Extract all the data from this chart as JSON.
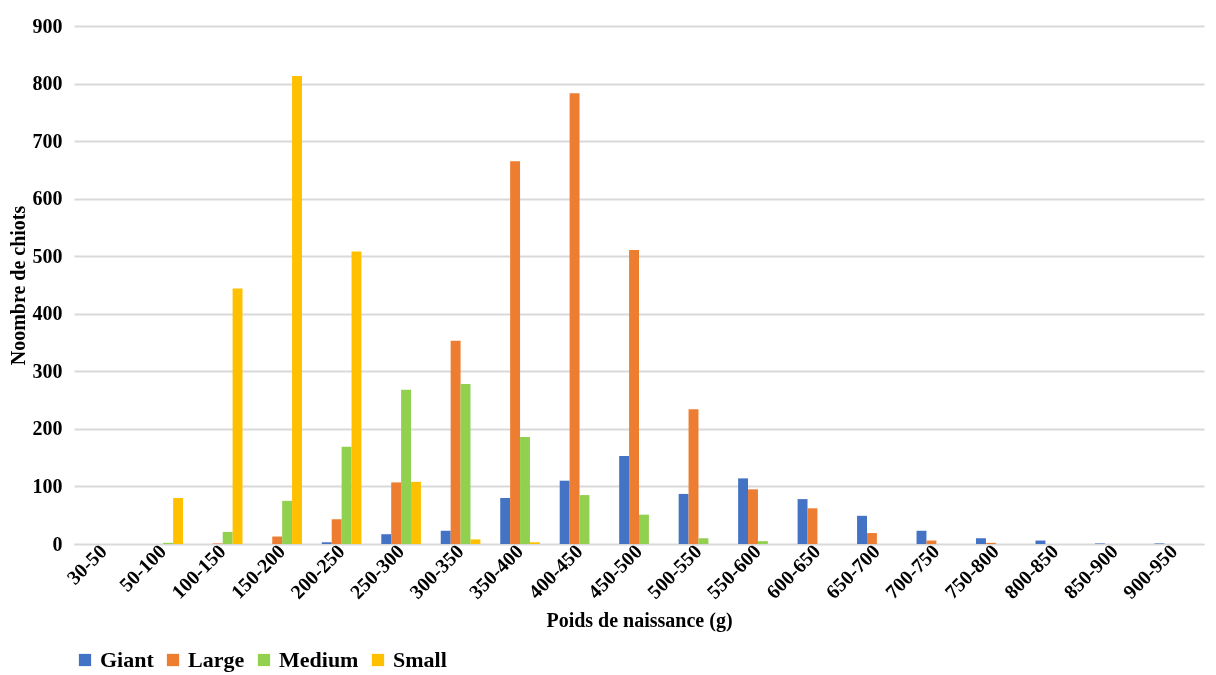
{
  "chart_data": {
    "type": "bar",
    "xlabel": "Poids de naissance (g)",
    "ylabel": "Noombre de chiots",
    "categories": [
      "30-50",
      "50-100",
      "100-150",
      "150-200",
      "200-250",
      "250-300",
      "300-350",
      "350-400",
      "400-450",
      "450-500",
      "500-550",
      "550-600",
      "600-650",
      "650-700",
      "700-750",
      "750-800",
      "800-850",
      "850-900",
      "900-950"
    ],
    "series": [
      {
        "name": "Giant",
        "color": "#4472c4",
        "values": [
          0,
          0,
          0,
          0,
          3,
          17,
          23,
          80,
          110,
          153,
          87,
          114,
          78,
          49,
          23,
          10,
          6,
          1,
          1
        ]
      },
      {
        "name": "Large",
        "color": "#ed7d31",
        "values": [
          0,
          0,
          1,
          13,
          43,
          107,
          353,
          665,
          783,
          511,
          234,
          95,
          62,
          19,
          6,
          2,
          0,
          0,
          0
        ]
      },
      {
        "name": "Medium",
        "color": "#92d050",
        "values": [
          0,
          2,
          21,
          75,
          169,
          268,
          278,
          186,
          85,
          51,
          10,
          5,
          0,
          0,
          0,
          0,
          0,
          0,
          0
        ]
      },
      {
        "name": "Small",
        "color": "#ffc000",
        "values": [
          0,
          80,
          444,
          813,
          508,
          108,
          8,
          3,
          0,
          0,
          0,
          0,
          0,
          0,
          0,
          0,
          0,
          0,
          0
        ]
      }
    ],
    "ylim": [
      0,
      900
    ],
    "yticks": [
      0,
      100,
      200,
      300,
      400,
      500,
      600,
      700,
      800,
      900
    ],
    "grid": "y",
    "legend": "bottom"
  }
}
